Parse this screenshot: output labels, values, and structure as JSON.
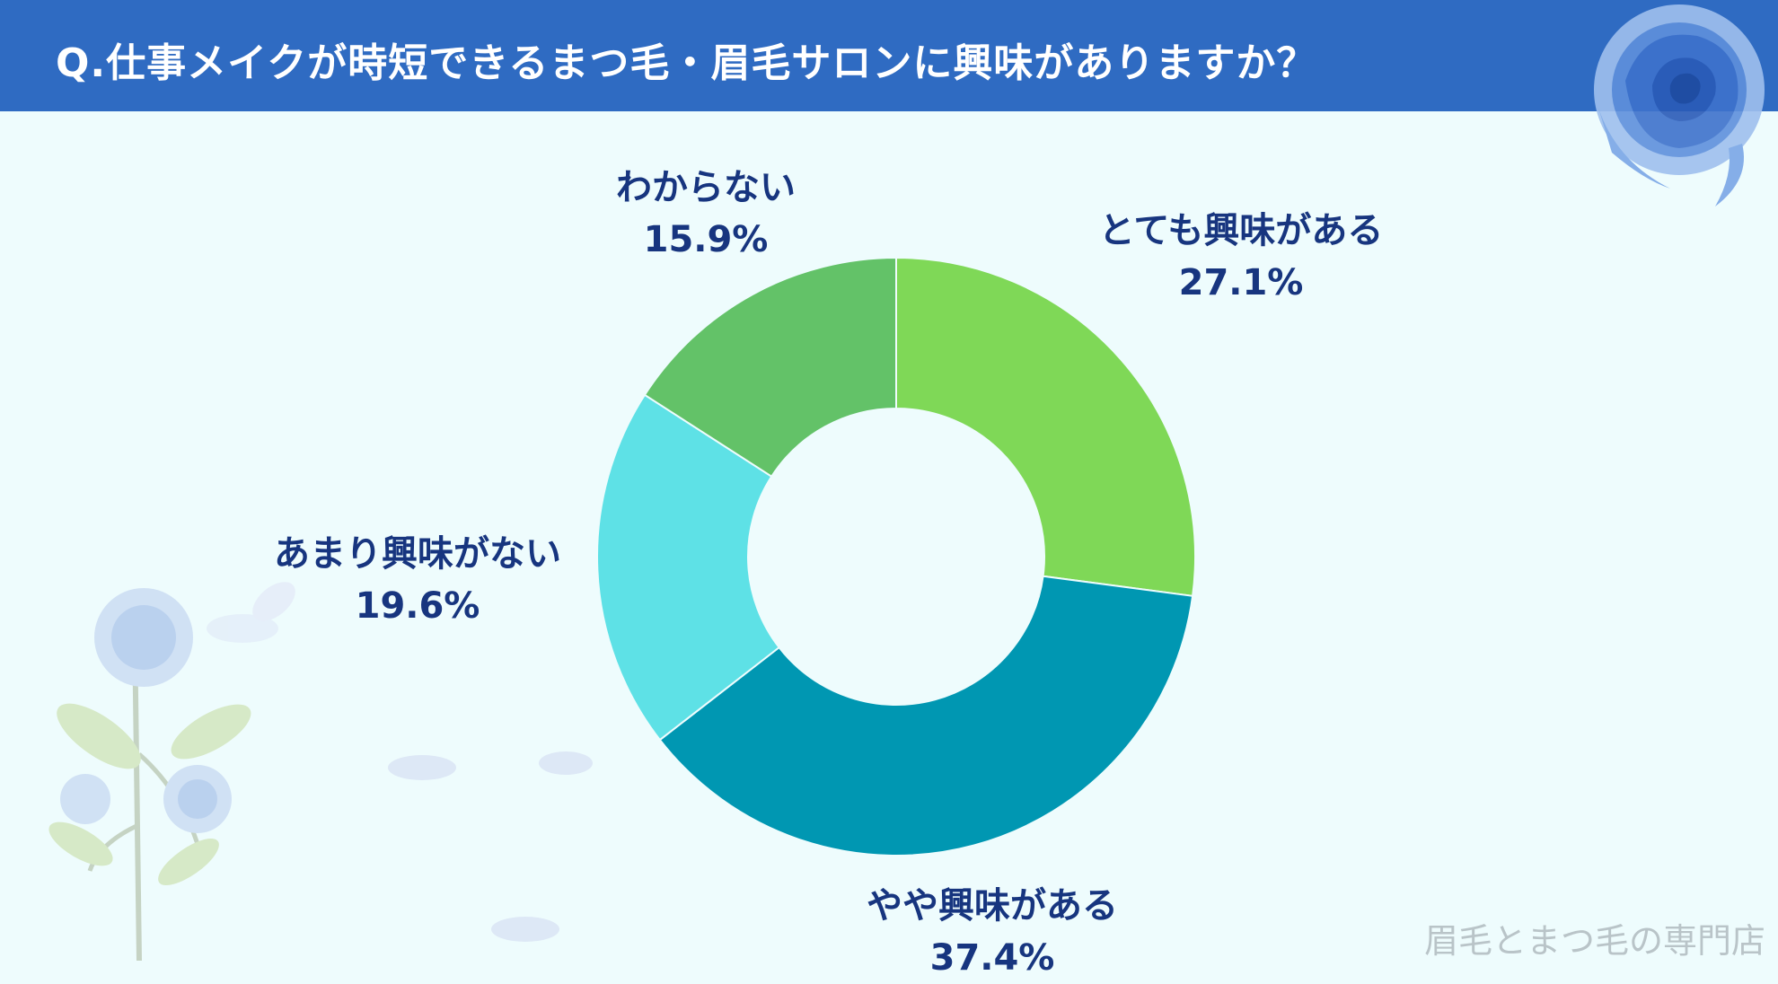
{
  "header": {
    "title": "Q.仕事メイクが時短できるまつ毛・眉毛サロンに興味がありますか？",
    "background": "#2f6bc2"
  },
  "chart_data": {
    "type": "pie",
    "donut": true,
    "categories": [
      "とても興味がある",
      "やや興味がある",
      "あまり興味がない",
      "わからない"
    ],
    "values": [
      27.1,
      37.4,
      19.6,
      15.9
    ],
    "value_labels": [
      "27.1%",
      "37.4%",
      "19.6%",
      "15.9%"
    ],
    "colors": [
      "#7fd857",
      "#0097b2",
      "#5ee1e6",
      "#63c268"
    ],
    "start": "12 o'clock, clockwise",
    "title": "Q.仕事メイクが時短できるまつ毛・眉毛サロンに興味がありますか？"
  },
  "footer": {
    "watermark": "眉毛とまつ毛の専門店"
  },
  "decoration": {
    "top_right": "blue-rose-icon",
    "bottom_left": "blue-rose-branch-icon"
  }
}
